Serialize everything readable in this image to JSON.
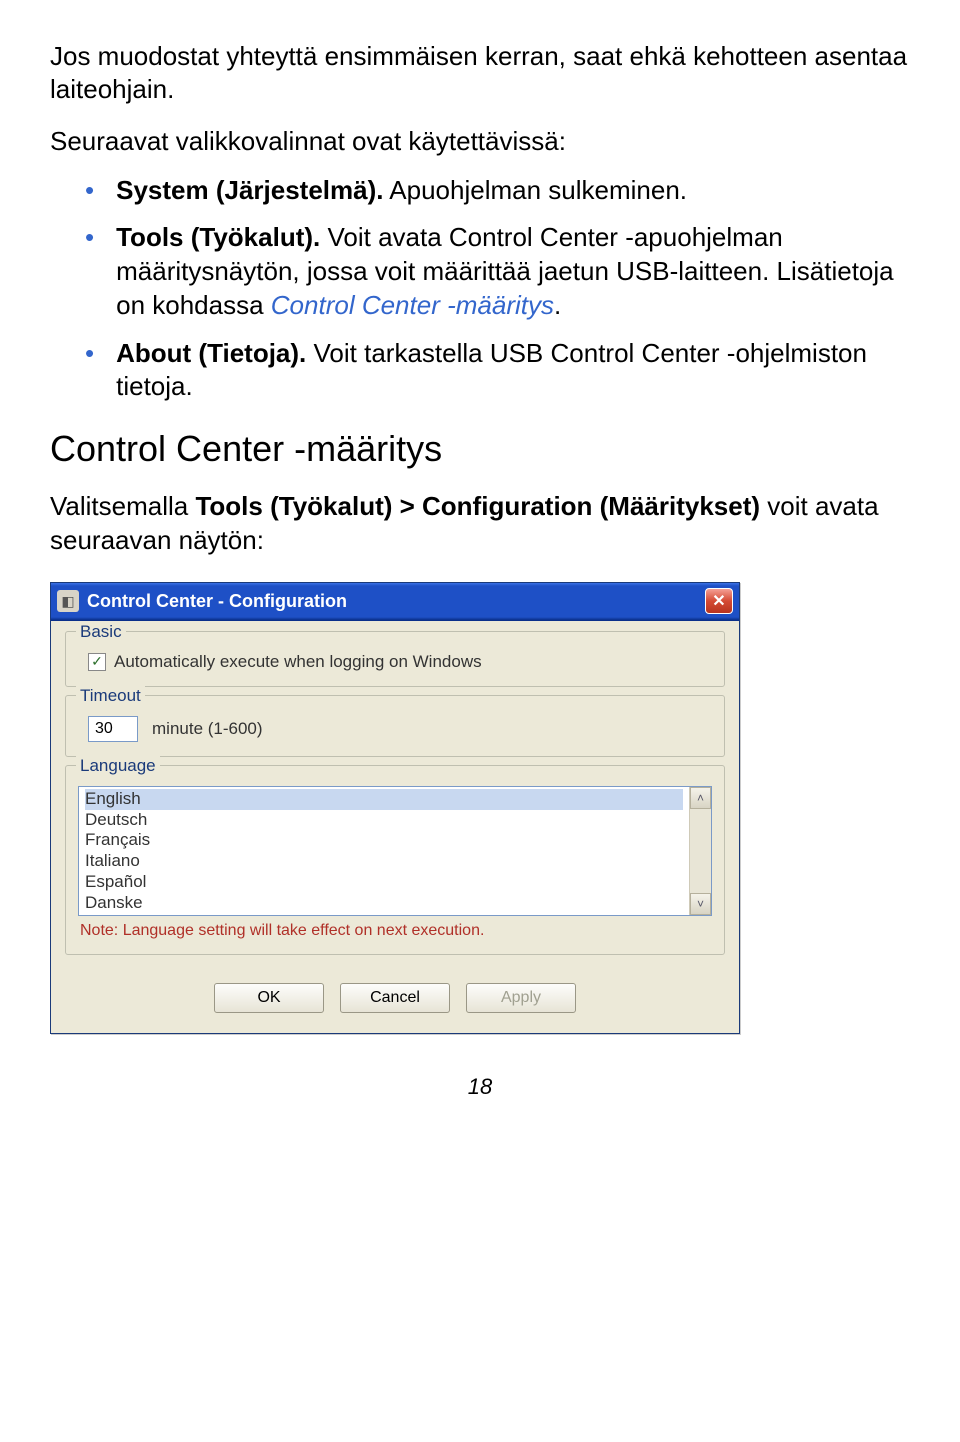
{
  "intro_para": "Jos muodostat yhteyttä ensimmäisen kerran, saat ehkä kehotteen asentaa laiteohjain.",
  "intro_para2": "Seuraavat valikkovalinnat ovat käytettävissä:",
  "bullets": [
    {
      "bold": "System (Järjestelmä).",
      "rest": " Apuohjelman sulkeminen."
    },
    {
      "bold": "Tools (Työkalut).",
      "rest_pre": " Voit avata Control Center -apuohjelman määritysnäytön, jossa voit määrittää jaetun USB-laitteen. Lisätietoja on kohdassa ",
      "link": "Control Center -määritys",
      "rest_post": "."
    },
    {
      "bold": "About (Tietoja).",
      "rest": " Voit tarkastella USB Control Center -ohjelmiston tietoja."
    }
  ],
  "heading": "Control Center -määritys",
  "config_text_pre": "Valitsemalla ",
  "config_text_bold": "Tools (Työkalut) > Configuration (Määritykset)",
  "config_text_post": " voit avata seuraavan näytön:",
  "dialog": {
    "title": "Control Center - Configuration",
    "basic_label": "Basic",
    "basic_checkbox": "Automatically execute when logging on Windows",
    "basic_checked": true,
    "timeout_label": "Timeout",
    "timeout_value": "30",
    "timeout_unit": "minute (1-600)",
    "language_label": "Language",
    "languages": [
      "English",
      "Deutsch",
      "Français",
      "Italiano",
      "Español",
      "Danske"
    ],
    "note": "Note: Language setting will take effect on next execution.",
    "ok": "OK",
    "cancel": "Cancel",
    "apply": "Apply"
  },
  "page_number": "18"
}
